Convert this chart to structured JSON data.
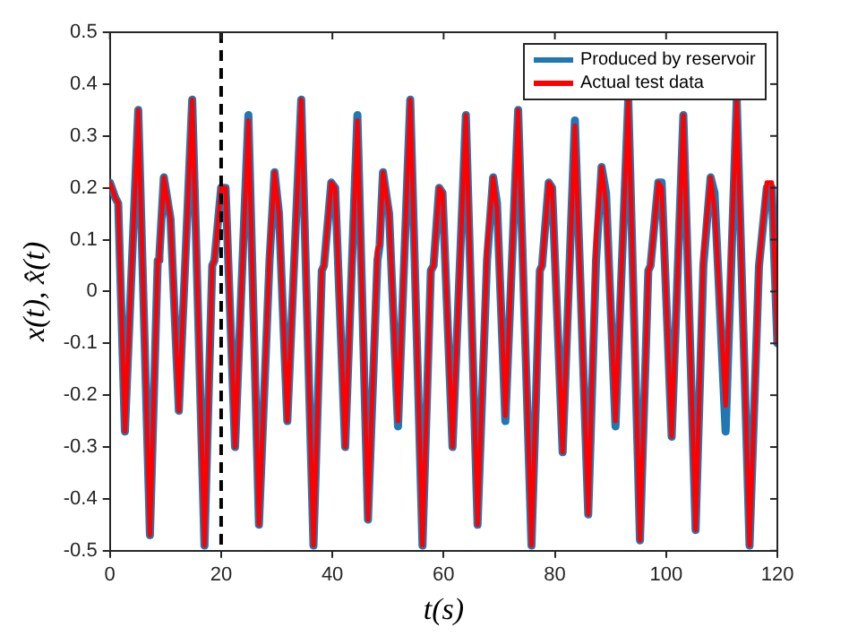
{
  "chart_data": {
    "type": "line",
    "xlabel": "t(s)",
    "ylabel": "x(t), x̂(t)",
    "xlim": [
      0,
      120
    ],
    "xticks": [
      0,
      20,
      40,
      60,
      80,
      100,
      120
    ],
    "ylim": [
      -0.5,
      0.5
    ],
    "yticks": [
      -0.5,
      -0.4,
      -0.3,
      -0.2,
      -0.1,
      0,
      0.1,
      0.2,
      0.3,
      0.4,
      0.5
    ],
    "x": [
      0,
      1.0,
      1.5,
      2.7,
      5.1,
      7.2,
      8.6,
      8.9,
      9.7,
      10.9,
      12.4,
      14.8,
      17.0,
      18.4,
      18.8,
      20.0,
      20.8,
      22.5,
      24.9,
      26.8,
      28.7,
      29.6,
      30.4,
      31.9,
      34.4,
      36.6,
      38.1,
      38.5,
      39.8,
      40.5,
      42.3,
      44.5,
      46.4,
      48.1,
      48.5,
      49.1,
      50.2,
      51.8,
      54.0,
      56.2,
      57.7,
      58.2,
      59.2,
      59.8,
      61.6,
      64.0,
      66.1,
      67.8,
      68.9,
      69.6,
      71.1,
      73.4,
      75.8,
      77.3,
      77.7,
      78.9,
      79.5,
      81.4,
      83.6,
      86.0,
      87.4,
      88.4,
      89.2,
      90.9,
      93.2,
      95.3,
      96.8,
      97.2,
      98.6,
      99.2,
      101.0,
      103.1,
      105.3,
      106.7,
      108.0,
      108.7,
      110.7,
      112.7,
      115.0,
      116.7,
      118.1,
      119.0,
      120.0
    ],
    "series": [
      {
        "name": "Produced by reservoir",
        "color": "#1f77b4",
        "values": [
          0.21,
          0.18,
          0.17,
          -0.27,
          0.35,
          -0.47,
          0.06,
          0.07,
          0.22,
          0.14,
          -0.23,
          0.37,
          -0.49,
          0.05,
          0.06,
          0.2,
          0.2,
          -0.3,
          0.34,
          -0.45,
          0.06,
          0.23,
          0.15,
          -0.25,
          0.37,
          -0.49,
          0.04,
          0.05,
          0.21,
          0.2,
          -0.3,
          0.34,
          -0.44,
          0.06,
          0.09,
          0.23,
          0.15,
          -0.26,
          0.37,
          -0.49,
          0.04,
          0.05,
          0.2,
          0.19,
          -0.3,
          0.34,
          -0.45,
          0.06,
          0.22,
          0.17,
          -0.25,
          0.35,
          -0.49,
          0.04,
          0.05,
          0.21,
          0.2,
          -0.31,
          0.33,
          -0.43,
          0.06,
          0.24,
          0.19,
          -0.26,
          0.37,
          -0.48,
          0.04,
          0.05,
          0.21,
          0.21,
          -0.28,
          0.34,
          -0.46,
          0.05,
          0.22,
          0.19,
          -0.27,
          0.37,
          -0.49,
          0.05,
          0.2,
          0.2,
          -0.1
        ]
      },
      {
        "name": "Actual test data",
        "color": "#ff0000",
        "values": [
          0.21,
          0.18,
          0.17,
          -0.27,
          0.35,
          -0.47,
          0.06,
          0.07,
          0.22,
          0.14,
          -0.23,
          0.37,
          -0.49,
          0.05,
          0.06,
          0.2,
          0.2,
          -0.3,
          0.33,
          -0.45,
          0.07,
          0.23,
          0.15,
          -0.25,
          0.37,
          -0.49,
          0.04,
          0.05,
          0.21,
          0.2,
          -0.3,
          0.33,
          -0.44,
          0.08,
          0.09,
          0.23,
          0.15,
          -0.25,
          0.37,
          -0.49,
          0.04,
          0.05,
          0.2,
          0.19,
          -0.3,
          0.34,
          -0.45,
          0.08,
          0.22,
          0.16,
          -0.24,
          0.35,
          -0.49,
          0.04,
          0.05,
          0.21,
          0.2,
          -0.31,
          0.32,
          -0.43,
          0.1,
          0.24,
          0.17,
          -0.25,
          0.37,
          -0.48,
          0.04,
          0.05,
          0.21,
          0.2,
          -0.28,
          0.34,
          -0.46,
          0.07,
          0.22,
          0.16,
          -0.22,
          0.37,
          -0.49,
          0.05,
          0.21,
          0.21,
          -0.1
        ]
      }
    ],
    "ref_lines": [
      {
        "axis": "x",
        "value": 20,
        "color": "#000000",
        "line_style": "dashed"
      }
    ],
    "legend": "top right",
    "grid": false,
    "marker": "none",
    "line_style": "solid"
  }
}
